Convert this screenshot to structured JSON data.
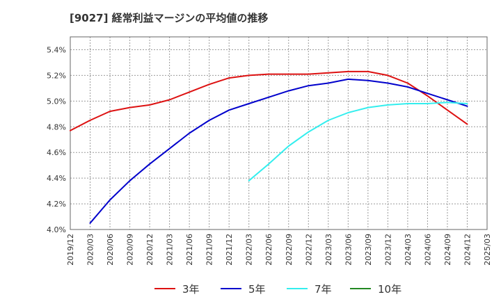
{
  "chart_data": {
    "type": "line",
    "title": "[9027]  経常利益マージンの平均値の推移",
    "xlabel": "",
    "ylabel": "",
    "ylim": [
      4.0,
      5.5
    ],
    "yticks": [
      "4.0%",
      "4.2%",
      "4.4%",
      "4.6%",
      "4.8%",
      "5.0%",
      "5.2%",
      "5.4%"
    ],
    "categories": [
      "2019/12",
      "2020/03",
      "2020/06",
      "2020/09",
      "2020/12",
      "2021/03",
      "2021/06",
      "2021/09",
      "2021/12",
      "2022/03",
      "2022/06",
      "2022/09",
      "2022/12",
      "2023/03",
      "2023/06",
      "2023/09",
      "2023/12",
      "2024/03",
      "2024/06",
      "2024/09",
      "2024/12",
      "2025/03"
    ],
    "grid": true,
    "legend_position": "bottom",
    "series": [
      {
        "name": "3年",
        "color": "#dd1111",
        "values": [
          4.77,
          4.85,
          4.92,
          4.95,
          4.97,
          5.01,
          5.07,
          5.13,
          5.18,
          5.2,
          5.21,
          5.21,
          5.21,
          5.22,
          5.23,
          5.23,
          5.2,
          5.14,
          5.04,
          4.93,
          4.82,
          null
        ]
      },
      {
        "name": "5年",
        "color": "#0000cc",
        "values": [
          null,
          4.05,
          4.23,
          4.38,
          4.51,
          4.63,
          4.75,
          4.85,
          4.93,
          4.98,
          5.03,
          5.08,
          5.12,
          5.14,
          5.17,
          5.16,
          5.14,
          5.11,
          5.06,
          5.01,
          4.96,
          null
        ]
      },
      {
        "name": "7年",
        "color": "#33eeee",
        "values": [
          null,
          null,
          null,
          null,
          null,
          null,
          null,
          null,
          null,
          4.38,
          4.51,
          4.65,
          4.76,
          4.85,
          4.91,
          4.95,
          4.97,
          4.98,
          4.98,
          4.99,
          4.98,
          null
        ]
      },
      {
        "name": "10年",
        "color": "#228822",
        "values": [
          null,
          null,
          null,
          null,
          null,
          null,
          null,
          null,
          null,
          null,
          null,
          null,
          null,
          null,
          null,
          null,
          null,
          null,
          null,
          null,
          null,
          null
        ]
      }
    ]
  }
}
